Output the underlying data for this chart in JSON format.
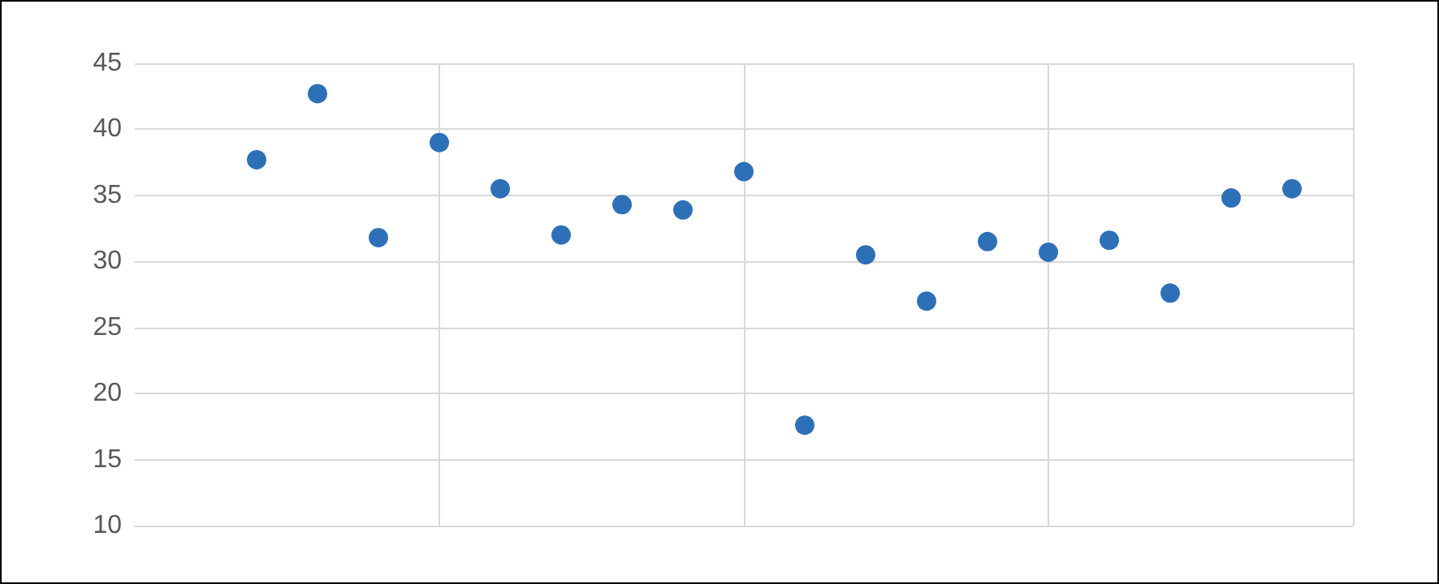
{
  "chart_data": {
    "type": "scatter",
    "categories": [
      null,
      null,
      null,
      null,
      null,
      null,
      null,
      null,
      null,
      null,
      null,
      null,
      null,
      null,
      null,
      null,
      null,
      null,
      null,
      null,
      null
    ],
    "series": [
      {
        "color": "#2e70b8",
        "values": [
          null,
          null,
          37.7,
          42.7,
          31.8,
          39.0,
          35.5,
          32.0,
          34.3,
          33.9,
          36.8,
          17.6,
          30.5,
          27.0,
          31.5,
          30.7,
          31.6,
          27.6,
          34.8,
          35.5,
          null
        ]
      }
    ],
    "ylim": [
      10,
      45
    ],
    "yticks": [
      10,
      15,
      20,
      25,
      30,
      35,
      40,
      45
    ],
    "grid": true,
    "tick_labels": "y",
    "marker": "circle"
  }
}
